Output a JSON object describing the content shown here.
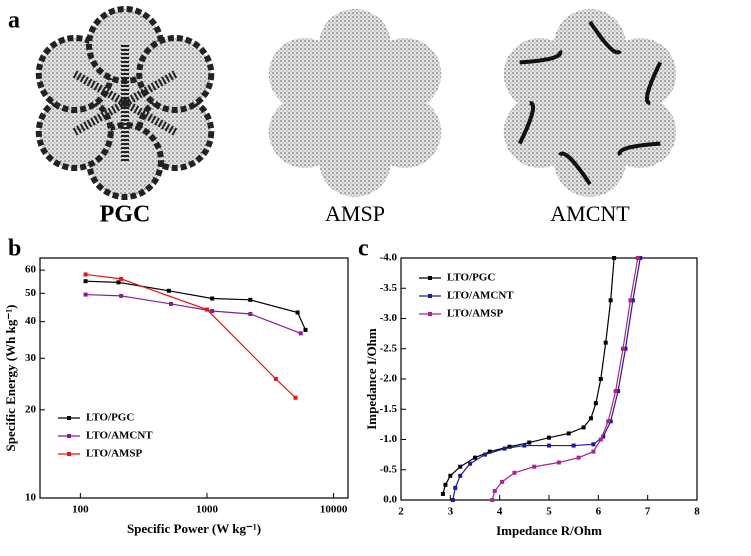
{
  "panel_a": {
    "label": "a",
    "captions": [
      "PGC",
      "AMSP",
      "AMCNT"
    ]
  },
  "chart_data": [
    {
      "type": "line",
      "label": "b",
      "xlabel": "Specific Power (W kg⁻¹)",
      "ylabel": "Specific Energy (Wh kg⁻¹)",
      "xscale": "log",
      "yscale": "log",
      "xlim": [
        48,
        13000
      ],
      "ylim": [
        10,
        66
      ],
      "xticks": [
        100,
        1000,
        10000
      ],
      "yticks": [
        10,
        20,
        30,
        40,
        50,
        60
      ],
      "legend": "lower left",
      "series": [
        {
          "name": "LTO/PGC",
          "color": "#000000",
          "x": [
            110,
            200,
            500,
            1100,
            2200,
            5200,
            6000
          ],
          "values": [
            55,
            54.5,
            51,
            48,
            47.5,
            43,
            37.5
          ]
        },
        {
          "name": "LTO/AMCNT",
          "color": "#8b1a9b",
          "x": [
            110,
            210,
            520,
            1100,
            2200,
            5500
          ],
          "values": [
            49.5,
            49,
            46,
            43.5,
            42.5,
            36.5
          ]
        },
        {
          "name": "LTO/AMSP",
          "color": "#ee1111",
          "x": [
            110,
            210,
            1000,
            3500,
            5000
          ],
          "values": [
            58,
            56,
            44,
            25.5,
            22
          ]
        }
      ]
    },
    {
      "type": "line",
      "label": "c",
      "xlabel": "Impedance R/Ohm",
      "ylabel": "Impedance I/Ohm",
      "xlim": [
        2,
        8
      ],
      "ylim": [
        0,
        -4
      ],
      "xticks": [
        2,
        3,
        4,
        5,
        6,
        7,
        8
      ],
      "yticks": [
        {
          "value": 0,
          "label": "0.0"
        },
        -0.5,
        {
          "value": -1,
          "label": "-1.0"
        },
        -1.5,
        {
          "value": -2,
          "label": "-2.0"
        },
        -2.5,
        {
          "value": -3,
          "label": "-3.0"
        },
        -3.5,
        {
          "value": -4,
          "label": "-4.0"
        }
      ],
      "legend": "upper left",
      "series": [
        {
          "name": "LTO/PGC",
          "color": "#000000",
          "x": [
            2.85,
            2.9,
            3.0,
            3.2,
            3.5,
            3.8,
            4.2,
            4.6,
            5.0,
            5.4,
            5.7,
            5.85,
            5.95,
            6.05,
            6.15,
            6.25,
            6.32
          ],
          "values": [
            -0.1,
            -0.25,
            -0.4,
            -0.55,
            -0.7,
            -0.8,
            -0.88,
            -0.95,
            -1.03,
            -1.1,
            -1.2,
            -1.35,
            -1.6,
            -2.0,
            -2.6,
            -3.3,
            -4.0
          ]
        },
        {
          "name": "LTO/AMCNT",
          "color": "#1a1aa0",
          "x": [
            3.05,
            3.1,
            3.2,
            3.4,
            3.7,
            4.1,
            4.5,
            5.0,
            5.5,
            5.9,
            6.1,
            6.25,
            6.4,
            6.55,
            6.7,
            6.85
          ],
          "values": [
            0,
            -0.2,
            -0.4,
            -0.6,
            -0.75,
            -0.85,
            -0.9,
            -0.9,
            -0.9,
            -0.92,
            -1.05,
            -1.3,
            -1.8,
            -2.5,
            -3.3,
            -4.0
          ]
        },
        {
          "name": "LTO/AMSP",
          "color": "#b0208f",
          "x": [
            3.85,
            3.9,
            4.05,
            4.3,
            4.7,
            5.2,
            5.6,
            5.9,
            6.05,
            6.2,
            6.35,
            6.5,
            6.65,
            6.8
          ],
          "values": [
            0,
            -0.15,
            -0.3,
            -0.45,
            -0.55,
            -0.62,
            -0.7,
            -0.8,
            -1.0,
            -1.3,
            -1.8,
            -2.5,
            -3.3,
            -4.0
          ]
        }
      ]
    }
  ]
}
